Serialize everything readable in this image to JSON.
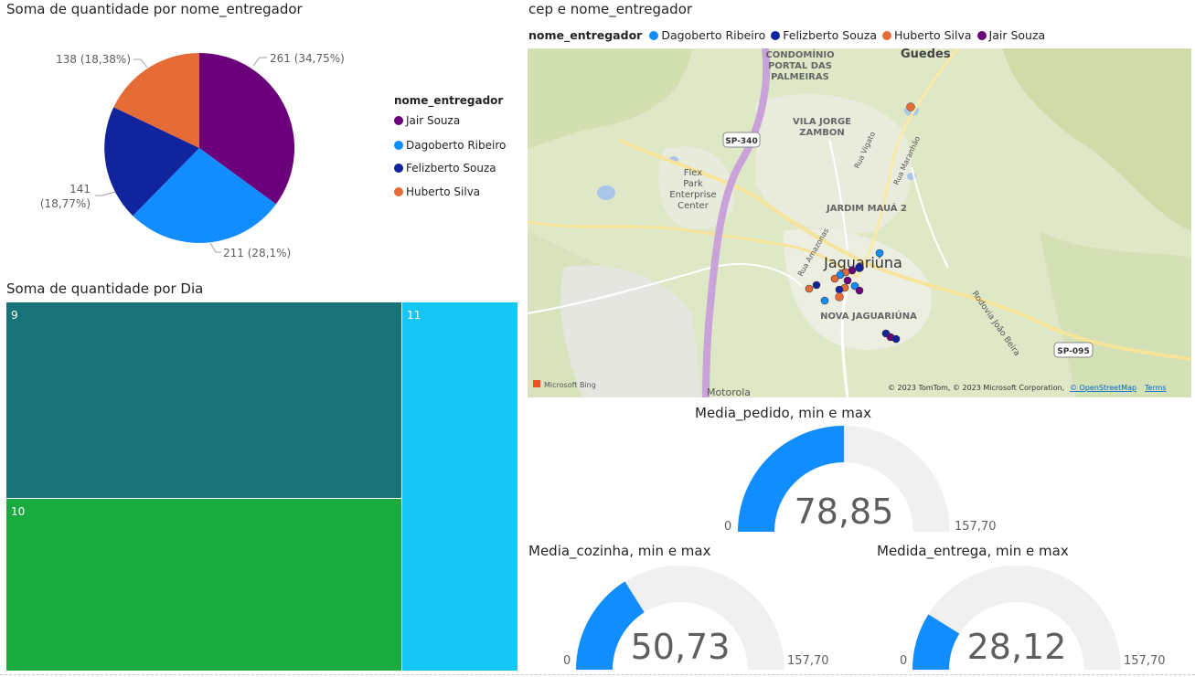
{
  "pie": {
    "title": "Soma de quantidade por nome_entregador",
    "legend_title": "nome_entregador",
    "slices": [
      {
        "name": "Jair Souza",
        "value": 261,
        "label": "261 (34,75%)",
        "color": "#6B007B"
      },
      {
        "name": "Dagoberto Ribeiro",
        "value": 211,
        "label": "211 (28,1%)",
        "color": "#118DFF"
      },
      {
        "name": "Felizberto Souza",
        "value": 141,
        "label_line1": "141",
        "label_line2": "(18,77%)",
        "color": "#12239E"
      },
      {
        "name": "Huberto Silva",
        "value": 138,
        "label": "138 (18,38%)",
        "color": "#E66C37"
      }
    ]
  },
  "map": {
    "title": "cep e nome_entregador",
    "legend_title": "nome_entregador",
    "legend": [
      {
        "name": "Dagoberto Ribeiro",
        "color": "#118DFF"
      },
      {
        "name": "Felizberto Souza",
        "color": "#12239E"
      },
      {
        "name": "Huberto Silva",
        "color": "#E66C37"
      },
      {
        "name": "Jair Souza",
        "color": "#6B007B"
      }
    ],
    "places": {
      "guedes": "Guedes",
      "condominio1": "CONDOMÍNIO",
      "condominio2": "PORTAL DAS",
      "condominio3": "PALMEIRAS",
      "vila1": "VILA JORGE",
      "vila2": "ZAMBON",
      "flex1": "Flex",
      "flex2": "Park",
      "flex3": "Enterprise",
      "flex4": "Center",
      "jardim": "JARDIM MAUÁ 2",
      "city": "Jaguariúna",
      "nova": "NOVA JAGUARIÚNA",
      "motorola": "Motorola",
      "rua_vigato": "Rua Vigato",
      "rua_maranhao": "Rua Maranhão",
      "rua_amazonas": "Rua Amazonas",
      "rodovia": "Rodovia João Beira",
      "sp340": "SP-340",
      "sp095": "SP-095"
    },
    "bing": "Microsoft Bing",
    "copyright": "© 2023 TomTom, © 2023 Microsoft Corporation,",
    "osm": "© OpenStreetMap",
    "terms": "Terms"
  },
  "treemap": {
    "title": "Soma de quantidade por Dia",
    "cells": [
      {
        "label": "9",
        "color": "#197278"
      },
      {
        "label": "10",
        "color": "#1AAB40"
      },
      {
        "label": "11",
        "color": "#15C6F4"
      }
    ]
  },
  "gauges": {
    "pedido": {
      "title": "Media_pedido, min e max",
      "value_label": "78,85",
      "min_label": "0",
      "max_label": "157,70",
      "fraction": 0.5
    },
    "cozinha": {
      "title": "Media_cozinha, min e max",
      "value_label": "50,73",
      "min_label": "0",
      "max_label": "157,70",
      "fraction": 0.3217
    },
    "entrega": {
      "title": "Medida_entrega, min e max",
      "value_label": "28,12",
      "min_label": "0",
      "max_label": "157,70",
      "fraction": 0.1783
    }
  },
  "colors": {
    "gauge_fill": "#118DFF",
    "gauge_track": "#F0F0F0"
  }
}
